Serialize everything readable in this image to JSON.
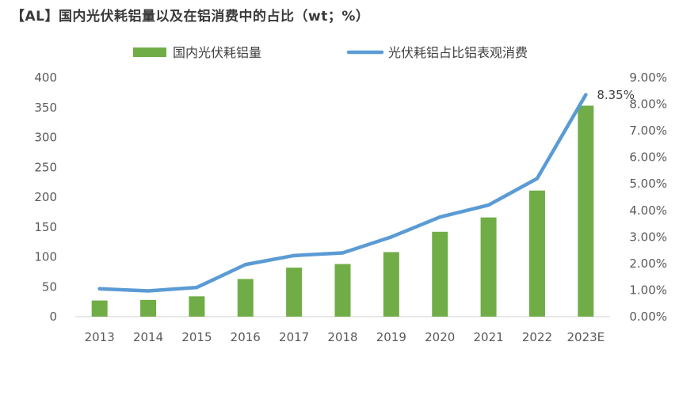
{
  "title": "【AL】国内光伏耗铝量以及在铝消费中的占比（wt；%）",
  "chart_data": {
    "type": "bar",
    "categories": [
      "2013",
      "2014",
      "2015",
      "2016",
      "2017",
      "2018",
      "2019",
      "2020",
      "2021",
      "2022",
      "2023E"
    ],
    "series": [
      {
        "name": "国内光伏耗铝量",
        "type": "bar",
        "axis": "left",
        "color": "#70AD47",
        "values": [
          27,
          28,
          34,
          63,
          82,
          88,
          108,
          142,
          166,
          211,
          353
        ]
      },
      {
        "name": "光伏耗铝占比铝表观消费",
        "type": "line",
        "axis": "right",
        "color": "#5B9BD5",
        "values": [
          1.05,
          0.97,
          1.1,
          1.96,
          2.3,
          2.4,
          3.0,
          3.75,
          4.2,
          5.2,
          8.35
        ]
      }
    ],
    "ylim_left": [
      0,
      400
    ],
    "yticks_left": [
      "0",
      "50",
      "100",
      "150",
      "200",
      "250",
      "300",
      "350",
      "400"
    ],
    "ylim_right": [
      0,
      9
    ],
    "yticks_right": [
      "0.00%",
      "1.00%",
      "2.00%",
      "3.00%",
      "4.00%",
      "5.00%",
      "6.00%",
      "7.00%",
      "8.00%",
      "9.00%"
    ],
    "data_labels": [
      {
        "category": "2023E",
        "text": "8.35%"
      }
    ],
    "grid": false,
    "legend_position": "top"
  }
}
